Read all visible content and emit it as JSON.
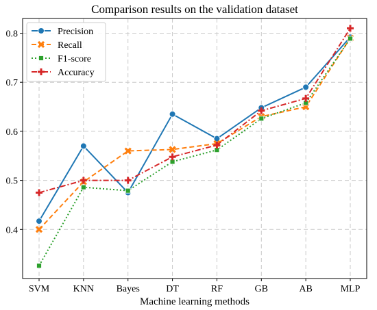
{
  "chart_data": {
    "type": "line",
    "title": "Comparison results on the validation dataset",
    "xlabel": "Machine learning methods",
    "ylabel": "",
    "categories": [
      "SVM",
      "KNN",
      "Bayes",
      "DT",
      "RF",
      "GB",
      "AB",
      "MLP"
    ],
    "ylim": [
      0.3,
      0.83
    ],
    "yticks": [
      0.4,
      0.5,
      0.6,
      0.7,
      0.8
    ],
    "yticks_labels": [
      "0.4",
      "0.5",
      "0.6",
      "0.7",
      "0.8"
    ],
    "grid": true,
    "legend_position": "top-left",
    "series": [
      {
        "name": "Precision",
        "color": "#1f77b4",
        "marker": "circle",
        "linestyle": "solid",
        "values": [
          0.417,
          0.57,
          0.475,
          0.635,
          0.585,
          0.648,
          0.69,
          0.792
        ]
      },
      {
        "name": "Recall",
        "color": "#ff7f0e",
        "marker": "x",
        "linestyle": "dashed",
        "values": [
          0.4,
          0.497,
          0.56,
          0.563,
          0.575,
          0.63,
          0.65,
          0.79
        ]
      },
      {
        "name": "F1-score",
        "color": "#2ca02c",
        "marker": "square",
        "linestyle": "dotted",
        "values": [
          0.326,
          0.486,
          0.479,
          0.538,
          0.562,
          0.626,
          0.658,
          0.789
        ]
      },
      {
        "name": "Accuracy",
        "color": "#d62728",
        "marker": "plus",
        "linestyle": "dashdot",
        "values": [
          0.475,
          0.5,
          0.5,
          0.548,
          0.572,
          0.642,
          0.667,
          0.81
        ]
      }
    ]
  }
}
